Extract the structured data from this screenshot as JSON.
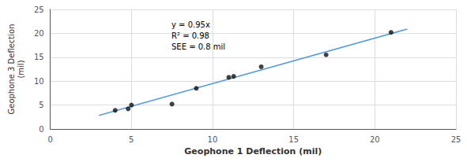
{
  "chart_data": {
    "type": "scatter",
    "xlabel": "Geophone 1 Deflection (mil)",
    "ylabel": "Geophone 3 Deflection\n(mil)",
    "annotations": [
      "y = 0.95x",
      "R² = 0.98",
      "SEE = 0.8 mil"
    ],
    "series": [
      {
        "type": "line",
        "color": "#5b9bd5",
        "x": [
          3.0,
          22.0
        ],
        "values": [
          2.85,
          20.9
        ]
      },
      {
        "type": "scatter",
        "color": "#111111",
        "x": [
          4.0,
          4.8,
          5.0,
          7.5,
          9.0,
          11.0,
          11.3,
          13.0,
          17.0,
          21.0
        ],
        "values": [
          3.9,
          4.2,
          5.0,
          5.2,
          8.5,
          10.8,
          11.0,
          13.0,
          15.5,
          20.2
        ]
      }
    ],
    "xlim": [
      0,
      25
    ],
    "ylim": [
      0,
      25
    ],
    "xticks": [
      0,
      5,
      10,
      15,
      20,
      25
    ],
    "yticks": [
      0,
      5,
      10,
      15,
      20,
      25
    ],
    "grid": true
  }
}
